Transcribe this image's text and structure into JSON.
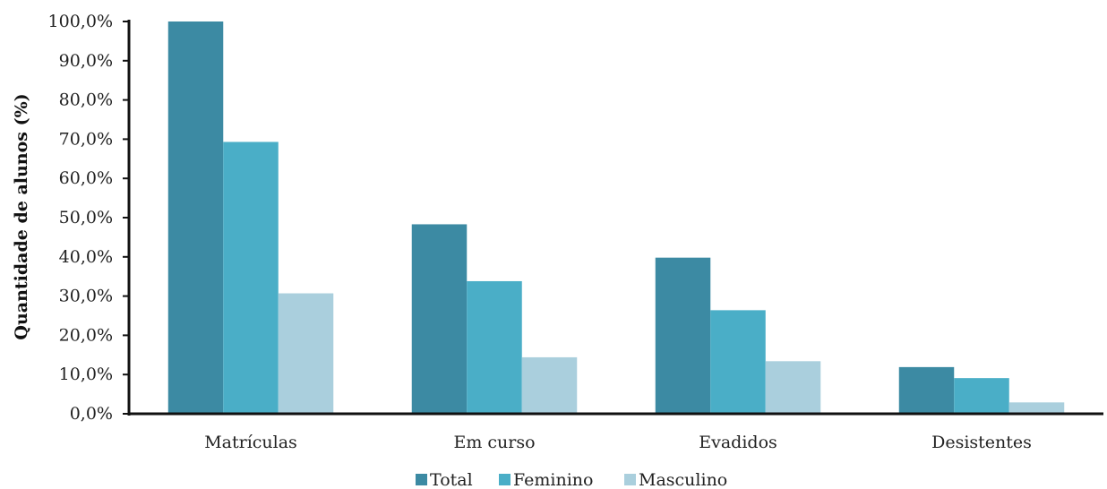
{
  "chart_data": {
    "type": "bar",
    "title": "",
    "xlabel": "",
    "ylabel": "Quantidade de alunos (%)",
    "ylim": [
      0,
      100
    ],
    "yticks": [
      0,
      10,
      20,
      30,
      40,
      50,
      60,
      70,
      80,
      90,
      100
    ],
    "ytick_labels": [
      "0,0%",
      "10,0%",
      "20,0%",
      "30,0%",
      "40,0%",
      "50,0%",
      "60,0%",
      "70,0%",
      "80,0%",
      "90,0%",
      "100,0%"
    ],
    "categories": [
      "Matrículas",
      "Em curso",
      "Evadidos",
      "Desistentes"
    ],
    "series": [
      {
        "name": "Total",
        "color": "#3c8aa3",
        "values": [
          100.0,
          48.3,
          39.8,
          11.9
        ]
      },
      {
        "name": "Feminino",
        "color": "#4aaec7",
        "values": [
          69.3,
          33.8,
          26.4,
          9.1
        ]
      },
      {
        "name": "Masculino",
        "color": "#aacfdd",
        "values": [
          30.7,
          14.4,
          13.4,
          2.9
        ]
      }
    ],
    "grid": false,
    "legend_position": "bottom"
  }
}
